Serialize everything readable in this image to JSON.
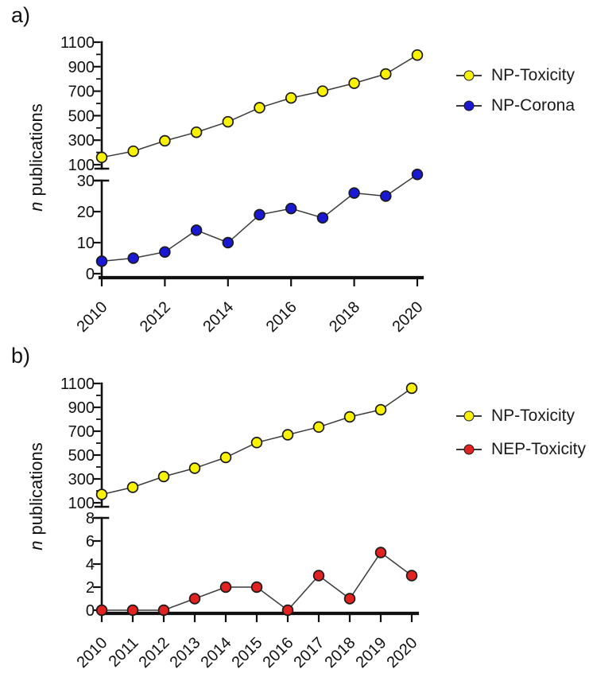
{
  "figure": {
    "background": "#FFFFFF",
    "axis_color": "#111111",
    "series_line_color": "#3B3B3B",
    "text_color": "#111111"
  },
  "chart_data": [
    {
      "panel_label": "a)",
      "type": "line",
      "ylabel_italic": "n",
      "ylabel_rest": "publications",
      "x": [
        2010,
        2011,
        2012,
        2013,
        2014,
        2015,
        2016,
        2017,
        2018,
        2019,
        2020
      ],
      "x_tick_years": [
        2010,
        2012,
        2014,
        2016,
        2018,
        2020
      ],
      "axis_break": true,
      "upper_axis": {
        "min": 100,
        "max": 1100,
        "major_ticks": [
          1100,
          900,
          700,
          500,
          300,
          100
        ],
        "minor_ticks": [
          1000,
          800,
          600,
          400,
          200
        ]
      },
      "lower_axis": {
        "min": 0,
        "max": 30,
        "major_ticks": [
          30,
          20,
          10,
          0
        ],
        "minor_ticks": []
      },
      "legend": [
        {
          "label": "NP-Toxicity",
          "color": "#F9F106"
        },
        {
          "label": "NP-Corona",
          "color": "#1A18D2"
        }
      ],
      "series": [
        {
          "name": "NP-Toxicity",
          "segment": "upper",
          "color": "#F9F106",
          "values": [
            160,
            210,
            295,
            365,
            450,
            565,
            645,
            700,
            765,
            840,
            995
          ]
        },
        {
          "name": "NP-Corona",
          "segment": "lower",
          "color": "#1A18D2",
          "values": [
            4,
            5,
            7,
            14,
            10,
            19,
            21,
            18,
            26,
            25,
            32
          ]
        }
      ]
    },
    {
      "panel_label": "b)",
      "type": "line",
      "ylabel_italic": "n",
      "ylabel_rest": "publications",
      "x": [
        2010,
        2011,
        2012,
        2013,
        2014,
        2015,
        2016,
        2017,
        2018,
        2019,
        2020
      ],
      "x_tick_years": [
        2010,
        2011,
        2012,
        2013,
        2014,
        2015,
        2016,
        2017,
        2018,
        2019,
        2020
      ],
      "axis_break": true,
      "upper_axis": {
        "min": 100,
        "max": 1100,
        "major_ticks": [
          1100,
          900,
          700,
          500,
          300,
          100
        ],
        "minor_ticks": [
          1000,
          800,
          600,
          400,
          200
        ]
      },
      "lower_axis": {
        "min": 0,
        "max": 8,
        "major_ticks": [
          8,
          6,
          4,
          2,
          0
        ],
        "minor_ticks": []
      },
      "legend": [
        {
          "label": "NP-Toxicity",
          "color": "#F9F106"
        },
        {
          "label": "NEP-Toxicity",
          "color": "#E12220"
        }
      ],
      "series": [
        {
          "name": "NP-Toxicity",
          "segment": "upper",
          "color": "#F9F106",
          "values": [
            170,
            230,
            320,
            390,
            480,
            605,
            670,
            735,
            820,
            880,
            1060
          ]
        },
        {
          "name": "NEP-Toxicity",
          "segment": "lower",
          "color": "#E12220",
          "values": [
            0,
            0,
            0,
            1,
            2,
            2,
            0,
            3,
            1,
            5,
            3
          ]
        }
      ]
    }
  ]
}
